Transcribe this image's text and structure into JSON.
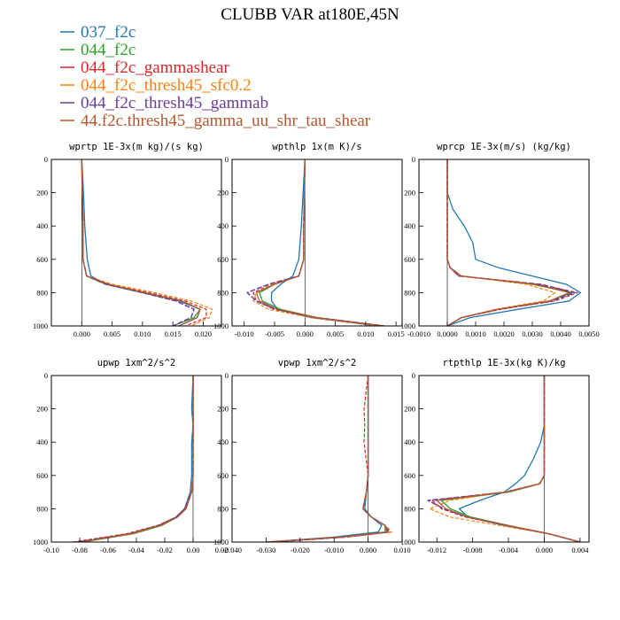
{
  "title": "CLUBB VAR at180E,45N",
  "legend": [
    {
      "label": "037_f2c",
      "color": "#1f77b4"
    },
    {
      "label": "044_f2c",
      "color": "#2ca02c"
    },
    {
      "label": "044_f2c_gammashear",
      "color": "#d62728"
    },
    {
      "label": "044_f2c_thresh45_sfc0.2",
      "color": "#ff7f0e"
    },
    {
      "label": "044_f2c_thresh45_gammab",
      "color": "#6a3d9a"
    },
    {
      "label": "44.f2c.thresh45_gamma_uu_shr_tau_shear",
      "color": "#b5562c"
    }
  ],
  "chart_data": [
    {
      "type": "line",
      "title": "wprtp  1E-3x(m kg)/(s kg)",
      "xlim": [
        -0.005,
        0.023
      ],
      "ylim": [
        1000,
        0
      ],
      "xticks": [
        "0.000",
        "0.005",
        "0.010",
        "0.015",
        "0.020"
      ],
      "yticks": [
        "0",
        "200",
        "400",
        "600",
        "800",
        "1000"
      ],
      "y": [
        0,
        200,
        400,
        600,
        700,
        750,
        800,
        850,
        900,
        950,
        1000
      ],
      "series": [
        {
          "name": "037_f2c",
          "values": [
            0.0,
            0.0003,
            0.0005,
            0.0009,
            0.0015,
            0.004,
            0.01,
            0.016,
            0.0195,
            0.019,
            0.016
          ]
        },
        {
          "name": "044_f2c",
          "values": [
            0.0,
            0.0001,
            0.0002,
            0.0002,
            0.0008,
            0.004,
            0.01,
            0.0165,
            0.0195,
            0.0185,
            0.015
          ]
        },
        {
          "name": "044_f2c_gammashear",
          "values": [
            0.0,
            0.0001,
            0.0002,
            0.0002,
            0.0008,
            0.005,
            0.011,
            0.017,
            0.0205,
            0.0205,
            0.017
          ]
        },
        {
          "name": "044_f2c_thresh45_sfc0.2",
          "values": [
            0.0,
            0.0001,
            0.0002,
            0.0002,
            0.0008,
            0.005,
            0.012,
            0.018,
            0.0215,
            0.021,
            0.018
          ]
        },
        {
          "name": "044_f2c_thresh45_gammab",
          "values": [
            0.0,
            0.0001,
            0.0002,
            0.0002,
            0.0008,
            0.004,
            0.01,
            0.0155,
            0.0185,
            0.018,
            0.015
          ]
        },
        {
          "name": "44.f2c.thresh45_gamma_uu_shr_tau_shear",
          "values": [
            0.0,
            0.0001,
            0.0002,
            0.0002,
            0.0008,
            0.0045,
            0.0105,
            0.0165,
            0.0195,
            0.019,
            0.016
          ]
        }
      ]
    },
    {
      "type": "line",
      "title": "wpthlp  1x(m K)/s",
      "xlim": [
        -0.012,
        0.016
      ],
      "ylim": [
        1000,
        0
      ],
      "xticks": [
        "-0.010",
        "-0.005",
        "0.000",
        "0.005",
        "0.010",
        "0.015"
      ],
      "yticks": [
        "0",
        "200",
        "400",
        "600",
        "800",
        "1000"
      ],
      "y": [
        0,
        200,
        400,
        600,
        700,
        750,
        800,
        850,
        900,
        950,
        1000
      ],
      "series": [
        {
          "name": "037_f2c",
          "values": [
            0.0,
            -0.0003,
            -0.0006,
            -0.001,
            -0.002,
            -0.004,
            -0.0055,
            -0.0055,
            -0.0045,
            0.001,
            0.012
          ]
        },
        {
          "name": "044_f2c",
          "values": [
            0.0,
            -0.0001,
            -0.0002,
            -0.0002,
            -0.001,
            -0.005,
            -0.0075,
            -0.007,
            -0.004,
            0.002,
            0.013
          ]
        },
        {
          "name": "044_f2c_gammashear",
          "values": [
            0.0,
            -0.0001,
            -0.0002,
            -0.0002,
            -0.001,
            -0.0055,
            -0.0085,
            -0.008,
            -0.005,
            0.002,
            0.013
          ]
        },
        {
          "name": "044_f2c_thresh45_sfc0.2",
          "values": [
            0.0,
            -0.0001,
            -0.0002,
            -0.0002,
            -0.001,
            -0.0055,
            -0.008,
            -0.0085,
            -0.006,
            0.001,
            0.012
          ]
        },
        {
          "name": "044_f2c_thresh45_gammab",
          "values": [
            0.0,
            -0.0001,
            -0.0002,
            -0.0002,
            -0.001,
            -0.006,
            -0.0095,
            -0.008,
            -0.005,
            0.002,
            0.013
          ]
        },
        {
          "name": "44.f2c.thresh45_gamma_uu_shr_tau_shear",
          "values": [
            0.0,
            -0.0001,
            -0.0002,
            -0.0002,
            -0.001,
            -0.005,
            -0.008,
            -0.0075,
            -0.0045,
            0.002,
            0.013
          ]
        }
      ]
    },
    {
      "type": "line",
      "title": "wprcp  1E-3x(m/s) (kg/kg)",
      "xlim": [
        -0.001,
        0.005
      ],
      "ylim": [
        1000,
        0
      ],
      "xticks": [
        "-0.0010",
        "0.0000",
        "0.0010",
        "0.0020",
        "0.0030",
        "0.0040",
        "0.0050"
      ],
      "yticks": [
        "0",
        "200",
        "400",
        "600",
        "800",
        "1000"
      ],
      "y": [
        0,
        200,
        300,
        400,
        500,
        600,
        650,
        700,
        750,
        800,
        850,
        900,
        950,
        1000
      ],
      "series": [
        {
          "name": "037_f2c",
          "values": [
            0.0,
            0.0,
            0.0002,
            0.0006,
            0.0009,
            0.001,
            0.0018,
            0.003,
            0.0042,
            0.0047,
            0.0043,
            0.0025,
            0.0008,
            0.0
          ]
        },
        {
          "name": "044_f2c",
          "values": [
            0.0,
            0.0,
            0.0,
            0.0,
            0.0,
            0.0,
            0.0001,
            0.0005,
            0.003,
            0.0044,
            0.0036,
            0.0018,
            0.0005,
            0.0
          ]
        },
        {
          "name": "044_f2c_gammashear",
          "values": [
            0.0,
            0.0,
            0.0,
            0.0,
            0.0,
            0.0,
            0.0001,
            0.0004,
            0.0032,
            0.0046,
            0.0038,
            0.0019,
            0.0005,
            0.0
          ]
        },
        {
          "name": "044_f2c_thresh45_sfc0.2",
          "values": [
            0.0,
            0.0,
            0.0,
            0.0,
            0.0,
            0.0,
            0.0001,
            0.0005,
            0.0028,
            0.0038,
            0.0034,
            0.0017,
            0.0005,
            0.0
          ]
        },
        {
          "name": "044_f2c_thresh45_gammab",
          "values": [
            0.0,
            0.0,
            0.0,
            0.0,
            0.0,
            0.0,
            0.0001,
            0.0004,
            0.0033,
            0.0045,
            0.0037,
            0.0018,
            0.0005,
            0.0
          ]
        },
        {
          "name": "44.f2c.thresh45_gamma_uu_shr_tau_shear",
          "values": [
            0.0,
            0.0,
            0.0,
            0.0,
            0.0,
            0.0,
            0.0001,
            0.0005,
            0.0031,
            0.0043,
            0.0036,
            0.0018,
            0.0005,
            0.0
          ]
        }
      ]
    },
    {
      "type": "line",
      "title": "upwp  1xm^2/s^2",
      "xlim": [
        -0.1,
        0.02
      ],
      "ylim": [
        1000,
        0
      ],
      "xticks": [
        "-0.10",
        "-0.08",
        "-0.06",
        "-0.04",
        "-0.02",
        "0.00",
        "0.02"
      ],
      "yticks": [
        "0",
        "200",
        "400",
        "600",
        "800",
        "1000"
      ],
      "y": [
        0,
        200,
        300,
        400,
        600,
        700,
        800,
        850,
        900,
        950,
        1000
      ],
      "series": [
        {
          "name": "037_f2c",
          "values": [
            0.0,
            -0.001,
            0.0,
            -0.001,
            -0.001,
            -0.002,
            -0.006,
            -0.012,
            -0.024,
            -0.045,
            -0.08
          ]
        },
        {
          "name": "044_f2c",
          "values": [
            0.0,
            0.0,
            0.0,
            0.0,
            0.0,
            -0.001,
            -0.005,
            -0.011,
            -0.022,
            -0.042,
            -0.078
          ]
        },
        {
          "name": "044_f2c_gammashear",
          "values": [
            0.0,
            0.0,
            0.0,
            0.0,
            0.0,
            -0.001,
            -0.006,
            -0.012,
            -0.025,
            -0.047,
            -0.085
          ]
        },
        {
          "name": "044_f2c_thresh45_sfc0.2",
          "values": [
            0.0,
            0.0,
            0.0,
            0.0,
            0.0,
            -0.001,
            -0.005,
            -0.011,
            -0.023,
            -0.043,
            -0.08
          ]
        },
        {
          "name": "044_f2c_thresh45_gammab",
          "values": [
            0.0,
            0.0,
            0.0,
            0.0,
            0.0,
            -0.001,
            -0.006,
            -0.012,
            -0.024,
            -0.045,
            -0.082
          ]
        },
        {
          "name": "44.f2c.thresh45_gamma_uu_shr_tau_shear",
          "values": [
            0.0,
            0.0,
            0.0,
            0.0,
            0.0,
            -0.001,
            -0.005,
            -0.011,
            -0.023,
            -0.044,
            -0.079
          ]
        }
      ]
    },
    {
      "type": "line",
      "title": "vpwp  1xm^2/s^2",
      "xlim": [
        -0.04,
        0.01
      ],
      "ylim": [
        1000,
        0
      ],
      "xticks": [
        "-0.040",
        "-0.030",
        "-0.020",
        "-0.010",
        "0.000",
        "0.010"
      ],
      "yticks": [
        "0",
        "200",
        "400",
        "600",
        "800",
        "1000"
      ],
      "y": [
        0,
        200,
        300,
        400,
        600,
        700,
        800,
        850,
        900,
        940,
        970,
        1000
      ],
      "series": [
        {
          "name": "037_f2c",
          "values": [
            0.0,
            0.0,
            0.0,
            0.0,
            0.0,
            -0.0005,
            -0.001,
            0.001,
            0.004,
            0.003,
            -0.01,
            -0.03
          ]
        },
        {
          "name": "044_f2c",
          "values": [
            0.0,
            0.0,
            0.0,
            0.0,
            0.0,
            -0.0005,
            -0.0015,
            0.001,
            0.005,
            0.005,
            -0.008,
            -0.028
          ]
        },
        {
          "name": "044_f2c_gammashear",
          "values": [
            0.0,
            -0.0012,
            -0.001,
            -0.0012,
            0.0,
            -0.0005,
            -0.0015,
            0.001,
            0.005,
            0.0065,
            -0.008,
            -0.03
          ]
        },
        {
          "name": "044_f2c_thresh45_sfc0.2",
          "values": [
            0.0,
            0.0,
            0.0,
            0.0,
            0.0,
            -0.0005,
            -0.0015,
            0.001,
            0.005,
            0.007,
            -0.006,
            -0.029
          ]
        },
        {
          "name": "044_f2c_thresh45_gammab",
          "values": [
            0.0,
            0.0,
            0.0,
            0.0,
            0.0,
            -0.0005,
            -0.0015,
            0.001,
            0.005,
            0.006,
            -0.007,
            -0.028
          ]
        },
        {
          "name": "44.f2c.thresh45_gamma_uu_shr_tau_shear",
          "values": [
            0.0,
            0.0,
            0.0,
            0.0,
            0.0,
            -0.0005,
            -0.0015,
            0.001,
            0.005,
            0.0055,
            -0.008,
            -0.03
          ]
        }
      ]
    },
    {
      "type": "line",
      "title": "rtpthlp  1E-3x(kg K)/kg",
      "xlim": [
        -0.014,
        0.005
      ],
      "ylim": [
        1000,
        0
      ],
      "xticks": [
        "-0.012",
        "-0.008",
        "-0.004",
        "0.000",
        "0.004"
      ],
      "yticks": [
        "0",
        "200",
        "400",
        "600",
        "800",
        "1000"
      ],
      "y": [
        0,
        200,
        300,
        400,
        500,
        600,
        650,
        700,
        750,
        800,
        850,
        900,
        950,
        1000
      ],
      "series": [
        {
          "name": "037_f2c",
          "values": [
            0.0,
            0.0,
            0.0,
            -0.0004,
            -0.0012,
            -0.0022,
            -0.0032,
            -0.0045,
            -0.0072,
            -0.0095,
            -0.0085,
            -0.0045,
            0.0005,
            0.004
          ]
        },
        {
          "name": "044_f2c",
          "values": [
            0.0,
            0.0,
            0.0,
            0.0,
            0.0,
            0.0,
            -0.0005,
            -0.004,
            -0.0115,
            -0.0105,
            -0.0082,
            -0.004,
            0.0005,
            0.004
          ]
        },
        {
          "name": "044_f2c_gammashear",
          "values": [
            0.0,
            0.0,
            0.0,
            0.0,
            0.0,
            0.0,
            -0.0005,
            -0.0045,
            -0.0125,
            -0.0115,
            -0.0088,
            -0.0042,
            0.0005,
            0.004
          ]
        },
        {
          "name": "044_f2c_thresh45_sfc0.2",
          "values": [
            0.0,
            0.0,
            0.0,
            0.0,
            0.0,
            0.0,
            -0.0006,
            -0.0045,
            -0.0105,
            -0.0128,
            -0.0105,
            -0.005,
            0.0004,
            0.004
          ]
        },
        {
          "name": "044_f2c_thresh45_gammab",
          "values": [
            0.0,
            0.0,
            0.0,
            0.0,
            0.0,
            0.0,
            -0.0005,
            -0.0042,
            -0.013,
            -0.0112,
            -0.0086,
            -0.0042,
            0.0005,
            0.004
          ]
        },
        {
          "name": "44.f2c.thresh45_gamma_uu_shr_tau_shear",
          "values": [
            0.0,
            0.0,
            0.0,
            0.0,
            0.0,
            0.0,
            -0.0005,
            -0.0043,
            -0.012,
            -0.011,
            -0.0085,
            -0.0041,
            0.0005,
            0.004
          ]
        }
      ]
    }
  ]
}
